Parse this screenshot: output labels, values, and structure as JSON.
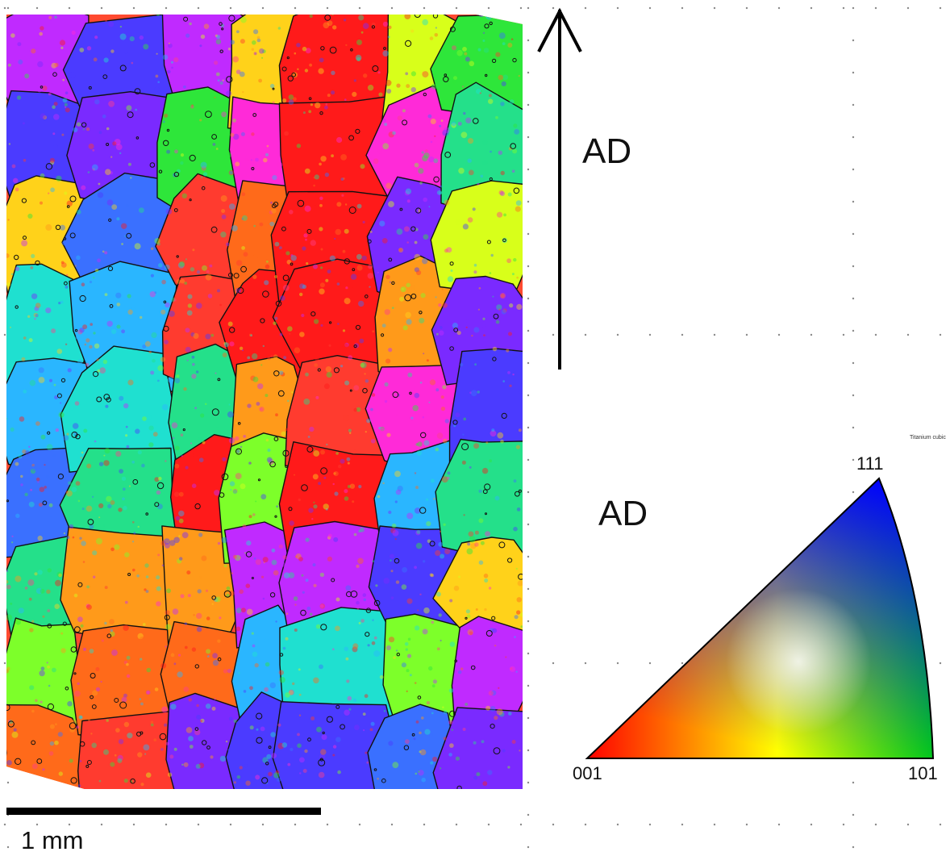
{
  "figure": {
    "direction_label_arrow": "AD",
    "direction_label_legend": "AD",
    "scale_bar_label": "1 mm",
    "material_label": "Titanium cubic"
  },
  "ipf_legend": {
    "corners": {
      "top": "111",
      "left": "001",
      "right": "101"
    },
    "colors": {
      "001": "#ff0000",
      "101": "#00e000",
      "111": "#0000ff"
    }
  },
  "map_palette": [
    "#ff1a1a",
    "#ff3b2f",
    "#ff6a1a",
    "#ff9a1a",
    "#ffd21a",
    "#d8ff1a",
    "#7dff2a",
    "#2ee63a",
    "#24e08a",
    "#1fe0d0",
    "#2ab6ff",
    "#3a70ff",
    "#4b3bff",
    "#7a2aff",
    "#c02aff",
    "#ff2ad8",
    "#ff3d8a"
  ]
}
